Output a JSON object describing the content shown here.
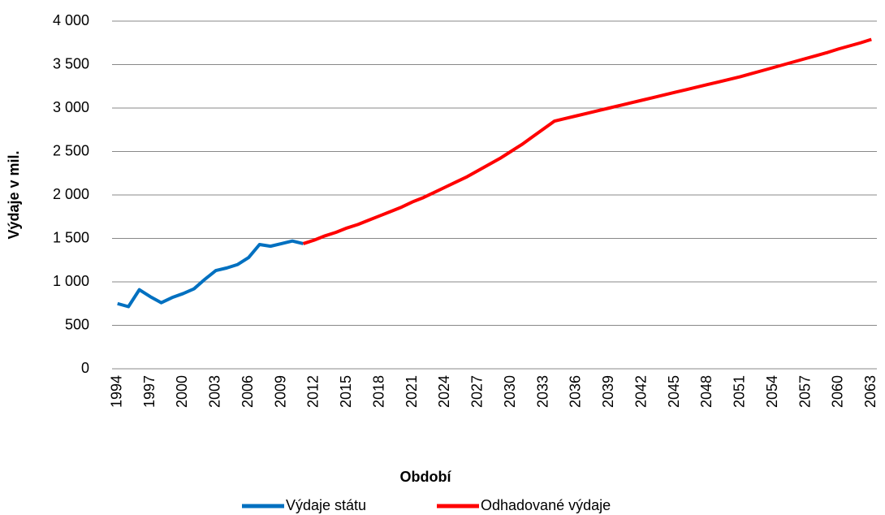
{
  "chart_data": {
    "type": "line",
    "y_label": "Výdaje v mil.",
    "x_label": "Období",
    "categories": [
      "1994",
      null,
      null,
      "1997",
      null,
      null,
      "2000",
      null,
      null,
      "2003",
      null,
      null,
      "2006",
      null,
      null,
      "2009",
      null,
      null,
      "2012",
      null,
      null,
      "2015",
      null,
      null,
      "2018",
      null,
      null,
      "2021",
      null,
      null,
      "2024",
      null,
      null,
      "2027",
      null,
      null,
      "2030",
      null,
      null,
      "2033",
      null,
      null,
      "2036",
      null,
      null,
      "2039",
      null,
      null,
      "2042",
      null,
      null,
      "2045",
      null,
      null,
      "2048",
      null,
      null,
      "2051",
      null,
      null,
      "2054",
      null,
      null,
      "2057",
      null,
      null,
      "2060",
      null,
      null,
      "2063"
    ],
    "series": [
      {
        "name": "Výdaje státu",
        "color": "#0070c0",
        "values": [
          750,
          715,
          910,
          830,
          760,
          820,
          865,
          920,
          1030,
          1130,
          1160,
          1200,
          1280,
          1430,
          1410,
          1440,
          1470,
          1440,
          null,
          null,
          null,
          null,
          null,
          null,
          null,
          null,
          null,
          null,
          null,
          null,
          null,
          null,
          null,
          null,
          null,
          null,
          null,
          null,
          null,
          null,
          null,
          null,
          null,
          null,
          null,
          null,
          null,
          null,
          null,
          null,
          null,
          null,
          null,
          null,
          null,
          null,
          null,
          null,
          null,
          null,
          null,
          null,
          null,
          null,
          null,
          null,
          null,
          null,
          null,
          null
        ]
      },
      {
        "name": "Odhadované výdaje",
        "color": "#ff0000",
        "values": [
          null,
          null,
          null,
          null,
          null,
          null,
          null,
          null,
          null,
          null,
          null,
          null,
          null,
          null,
          null,
          null,
          null,
          1440,
          1480,
          1530,
          1570,
          1620,
          1660,
          1710,
          1760,
          1810,
          1860,
          1920,
          1970,
          2030,
          2090,
          2150,
          2210,
          2280,
          2350,
          2420,
          2500,
          2580,
          2670,
          2760,
          2850,
          2880,
          2910,
          2940,
          2970,
          3000,
          3030,
          3060,
          3090,
          3120,
          3150,
          3180,
          3210,
          3240,
          3270,
          3300,
          3330,
          3360,
          3395,
          3430,
          3465,
          3500,
          3535,
          3570,
          3605,
          3640,
          3680,
          3715,
          3750,
          3790
        ]
      }
    ],
    "ylim": [
      0,
      4000
    ],
    "yticks": [
      0,
      500,
      {
        "value": 1000,
        "label": "1 000"
      },
      {
        "value": 1500,
        "label": "1 500"
      },
      {
        "value": 2000,
        "label": "2 000"
      },
      {
        "value": 2500,
        "label": "2 500"
      },
      {
        "value": 3000,
        "label": "3 000"
      },
      {
        "value": 3500,
        "label": "3 500"
      },
      {
        "value": 4000,
        "label": "4 000"
      }
    ],
    "grid": true,
    "legend": "bottom"
  }
}
